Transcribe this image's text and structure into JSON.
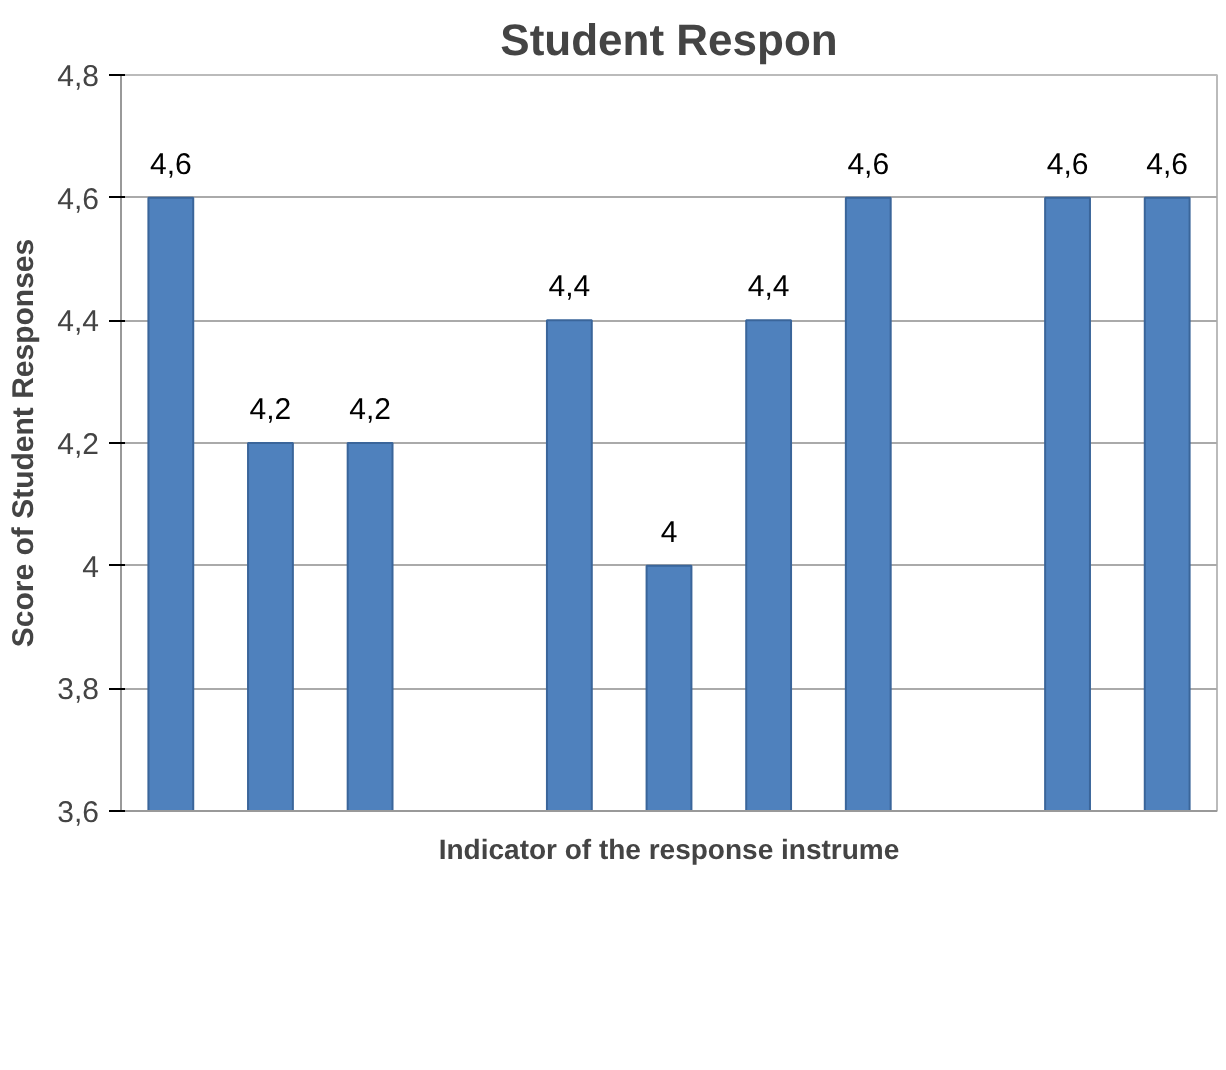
{
  "chart_data": {
    "type": "bar",
    "title": "Student Respon",
    "xlabel": "Indicator of the response instrume",
    "ylabel": "Score of Student Responses",
    "categories": [
      null,
      null,
      null,
      null,
      null,
      null,
      null,
      null,
      null,
      null,
      null
    ],
    "values": [
      4.6,
      4.2,
      4.2,
      null,
      4.4,
      4.0,
      4.4,
      4.6,
      null,
      4.6,
      4.6
    ],
    "value_labels": [
      "4,6",
      "4,2",
      "4,2",
      null,
      "4,4",
      "4",
      "4,4",
      "4,6",
      null,
      "4,6",
      "4,6"
    ],
    "color": "#4f81bd",
    "ylim": [
      3.6,
      4.8
    ],
    "yticks": [
      {
        "value": 3.6,
        "label": "3,6"
      },
      {
        "value": 3.8,
        "label": "3,8"
      },
      {
        "value": 4,
        "label": "4"
      },
      {
        "value": 4.2,
        "label": "4,2"
      },
      {
        "value": 4.4,
        "label": "4,4"
      },
      {
        "value": 4.6,
        "label": "4,6"
      },
      {
        "value": 4.8,
        "label": "4,8"
      }
    ],
    "grid": "y"
  }
}
